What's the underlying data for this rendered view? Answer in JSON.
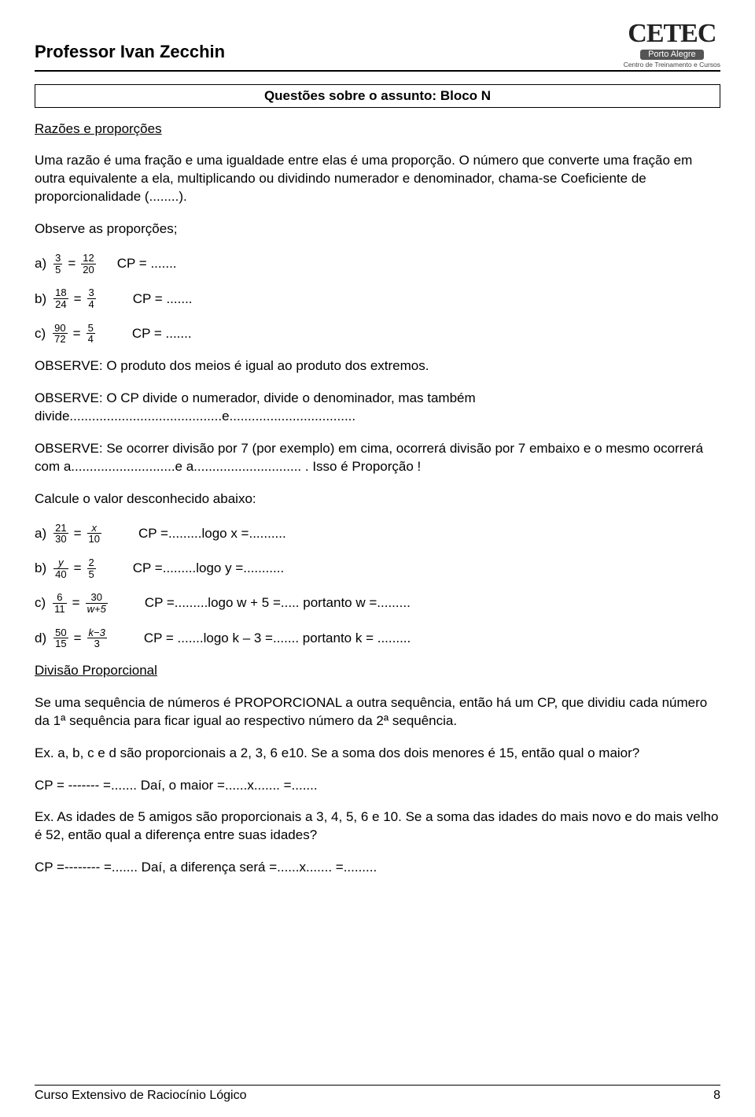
{
  "header": {
    "professor": "Professor Ivan Zecchin",
    "logo_main": "CETEC",
    "logo_sub": "Porto Alegre",
    "logo_tag": "Centro de Treinamento e Cursos"
  },
  "box_title": "Questões sobre o assunto: Bloco N",
  "section1_title": "Razões e proporções",
  "para1": "Uma razão é uma fração e uma igualdade entre elas é uma proporção. O número que converte uma fração em outra equivalente a ela, multiplicando ou dividindo numerador e denominador, chama-se Coeficiente de proporcionalidade (........).",
  "para2": "Observe as proporções;",
  "prop": {
    "a": {
      "lbl": "a)",
      "f1n": "3",
      "f1d": "5",
      "eq": "=",
      "f2n": "12",
      "f2d": "20",
      "trail": "CP = ......."
    },
    "b": {
      "lbl": "b)",
      "f1n": "18",
      "f1d": "24",
      "eq": "=",
      "f2n": "3",
      "f2d": "4",
      "trail": "CP = ......."
    },
    "c": {
      "lbl": "c)",
      "f1n": "90",
      "f1d": "72",
      "eq": "=",
      "f2n": "5",
      "f2d": "4",
      "trail": "CP = ......."
    }
  },
  "obs1": "OBSERVE: O produto dos meios é igual ao produto dos extremos.",
  "obs2": "OBSERVE: O CP divide o numerador, divide o denominador, mas também divide.........................................e..................................",
  "obs3": "OBSERVE: Se ocorrer divisão por 7 (por exemplo) em cima, ocorrerá divisão por 7 embaixo e o mesmo ocorrerá com a............................e a............................. .  Isso é Proporção !",
  "para3": "Calcule o valor desconhecido abaixo:",
  "calc": {
    "a": {
      "lbl": "a)",
      "f1n": "21",
      "f1d": "30",
      "eq": "=",
      "f2n": "x",
      "f2d": "10",
      "trail": "CP =.........logo x =.........."
    },
    "b": {
      "lbl": "b)",
      "f1n": "y",
      "f1d": "40",
      "eq": "=",
      "f2n": "2",
      "f2d": "5",
      "trail": "CP =.........logo y =..........."
    },
    "c": {
      "lbl": "c)",
      "f1n": "6",
      "f1d": "11",
      "eq": "=",
      "f2n": "30",
      "f2d": "w+5",
      "trail": "CP =.........logo w + 5 =.....  portanto w =........."
    },
    "d": {
      "lbl": "d)",
      "f1n": "50",
      "f1d": "15",
      "eq": "=",
      "f2n": "k−3",
      "f2d": "3",
      "trail": "CP = .......logo k – 3 =.......  portanto k = ........."
    }
  },
  "section2_title": "Divisão Proporcional",
  "para4": "Se uma sequência de números é PROPORCIONAL a outra sequência, então há um CP, que dividiu cada número da 1ª sequência para ficar igual ao respectivo número da 2ª sequência.",
  "ex1": "Ex. a, b, c e d são proporcionais a 2, 3, 6 e10. Se a soma dos dois menores é 15, então qual o maior?",
  "ex1_ans": "CP = ------- =.......     Daí, o maior =......x.......  =.......",
  "ex2": "Ex. As idades de 5 amigos são proporcionais a 3, 4, 5, 6 e 10. Se a soma das idades do mais novo e do mais velho é 52, então qual a diferença entre suas idades?",
  "ex2_ans": "CP =-------- =.......     Daí, a diferença será =......x....... =.........",
  "footer": {
    "course": "Curso Extensivo de Raciocínio Lógico",
    "page": "8"
  }
}
